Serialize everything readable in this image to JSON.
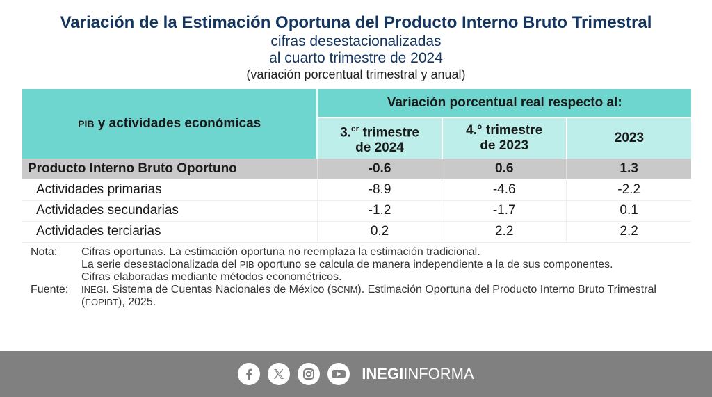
{
  "header": {
    "title": "Variación de la Estimación Oportuna del Producto Interno Bruto Trimestral",
    "subtitle1": "cifras desestacionalizadas",
    "subtitle2": "al cuarto trimestre de 2024",
    "subtitle3": "(variación porcentual trimestral y anual)"
  },
  "table": {
    "left_header_small": "PIB",
    "left_header_rest": " y actividades económicas",
    "top_header": "Variación porcentual real respecto al:",
    "columns": [
      {
        "line1_num": "3.",
        "line1_sup": "er",
        "line1_rest": " trimestre",
        "line2": "de 2024"
      },
      {
        "line1_num": "4.°",
        "line1_sup": "",
        "line1_rest": " trimestre",
        "line2": "de 2023"
      },
      {
        "line1_num": "2023",
        "line1_sup": "",
        "line1_rest": "",
        "line2": ""
      }
    ],
    "rows": [
      {
        "label": "Producto Interno Bruto Oportuno",
        "values": [
          "-0.6",
          "0.6",
          "1.3"
        ]
      },
      {
        "label": "Actividades primarias",
        "values": [
          "-8.9",
          "-4.6",
          "-2.2"
        ]
      },
      {
        "label": "Actividades secundarias",
        "values": [
          "-1.2",
          "-1.7",
          "0.1"
        ]
      },
      {
        "label": "Actividades terciarias",
        "values": [
          "0.2",
          "2.2",
          "2.2"
        ]
      }
    ]
  },
  "notes": {
    "nota_label": "Nota:",
    "nota1": "Cifras oportunas. La estimación oportuna no reemplaza la estimación tradicional.",
    "nota2_a": "La serie desestacionalizada del ",
    "nota2_b": "PIB",
    "nota2_c": " oportuno se calcula de manera independiente a la de sus componentes.",
    "nota3": "Cifras elaboradas mediante métodos econométricos.",
    "fuente_label": "Fuente:",
    "fuente_a": "INEGI",
    "fuente_b": ". Sistema de Cuentas Nacionales de México (",
    "fuente_c": "SCNM",
    "fuente_d": "). Estimación Oportuna del Producto Interno Bruto Trimestral (",
    "fuente_e": "EOPIBT",
    "fuente_f": "), 2025."
  },
  "footer": {
    "brand_bold": "INEGI",
    "brand_light": "INFORMA",
    "icons": [
      "facebook-icon",
      "x-icon",
      "instagram-icon",
      "youtube-icon"
    ],
    "bar_color": "#808080"
  },
  "colors": {
    "title": "#13355f",
    "header_teal": "#6fd6cf",
    "header_light": "#bdeeea",
    "main_row": "#c9c9c9"
  }
}
